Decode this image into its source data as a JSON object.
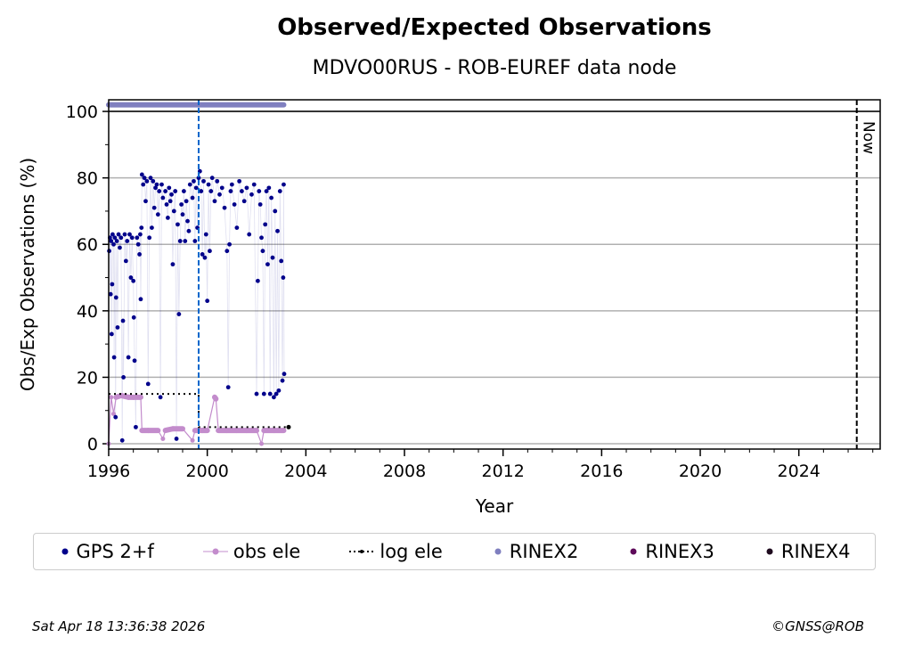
{
  "chart_data": {
    "type": "scatter",
    "title": "Observed/Expected Observations",
    "subtitle": "MDVO00RUS - ROB-EUREF data node",
    "xlabel": "Year",
    "ylabel": "Obs/Exp Observations (%)",
    "xlim": [
      1996,
      2027.3
    ],
    "ylim": [
      -1.6,
      103.5
    ],
    "xticks": [
      "1996",
      "2000",
      "2004",
      "2008",
      "2012",
      "2016",
      "2020",
      "2024"
    ],
    "yticks": [
      "0",
      "20",
      "40",
      "60",
      "80",
      "100"
    ],
    "grid": true,
    "now_label": "Now",
    "now_x": 2026.35,
    "marker_x": 1999.65,
    "legend": [
      "GPS 2+f",
      "obs ele",
      "log ele",
      "RINEX2",
      "RINEX3",
      "RINEX4"
    ],
    "legend_placement": "bottom",
    "colors": {
      "gps": "#00008b",
      "obs": "#c38ccc",
      "log": "#000000",
      "rinex2": "#7f7fbf",
      "rinex3": "#5e0a5a",
      "rinex4": "#1e0a1e",
      "marker": "#0066cc"
    },
    "series": [
      {
        "name": "GPS 2+f",
        "points": [
          [
            1996.02,
            58
          ],
          [
            1996.05,
            62
          ],
          [
            1996.08,
            45
          ],
          [
            1996.1,
            61
          ],
          [
            1996.12,
            33
          ],
          [
            1996.14,
            48
          ],
          [
            1996.16,
            63
          ],
          [
            1996.2,
            60
          ],
          [
            1996.22,
            26
          ],
          [
            1996.25,
            62
          ],
          [
            1996.28,
            8
          ],
          [
            1996.3,
            44
          ],
          [
            1996.33,
            61
          ],
          [
            1996.36,
            35
          ],
          [
            1996.4,
            63
          ],
          [
            1996.45,
            59
          ],
          [
            1996.5,
            62
          ],
          [
            1996.55,
            1
          ],
          [
            1996.58,
            37
          ],
          [
            1996.6,
            20
          ],
          [
            1996.65,
            63
          ],
          [
            1996.7,
            55
          ],
          [
            1996.75,
            61
          ],
          [
            1996.8,
            26
          ],
          [
            1996.85,
            63
          ],
          [
            1996.9,
            50
          ],
          [
            1996.95,
            62
          ],
          [
            1997.0,
            49
          ],
          [
            1997.02,
            38
          ],
          [
            1997.05,
            25
          ],
          [
            1997.1,
            5
          ],
          [
            1997.15,
            62
          ],
          [
            1997.2,
            60
          ],
          [
            1997.25,
            57
          ],
          [
            1997.28,
            63
          ],
          [
            1997.3,
            43.5
          ],
          [
            1997.33,
            65
          ],
          [
            1997.35,
            81
          ],
          [
            1997.4,
            78
          ],
          [
            1997.45,
            80
          ],
          [
            1997.5,
            73
          ],
          [
            1997.55,
            79
          ],
          [
            1997.6,
            18
          ],
          [
            1997.65,
            62
          ],
          [
            1997.7,
            80
          ],
          [
            1997.75,
            65
          ],
          [
            1997.8,
            79
          ],
          [
            1997.85,
            71
          ],
          [
            1997.9,
            77
          ],
          [
            1997.95,
            78
          ],
          [
            1998.0,
            69
          ],
          [
            1998.05,
            76
          ],
          [
            1998.1,
            14
          ],
          [
            1998.15,
            78
          ],
          [
            1998.2,
            74
          ],
          [
            1998.3,
            76
          ],
          [
            1998.35,
            72
          ],
          [
            1998.4,
            68
          ],
          [
            1998.45,
            77
          ],
          [
            1998.5,
            73
          ],
          [
            1998.55,
            75
          ],
          [
            1998.6,
            54
          ],
          [
            1998.65,
            70
          ],
          [
            1998.7,
            76
          ],
          [
            1998.75,
            1.5
          ],
          [
            1998.8,
            66
          ],
          [
            1998.85,
            39
          ],
          [
            1998.9,
            61
          ],
          [
            1998.95,
            72
          ],
          [
            1999.0,
            69
          ],
          [
            1999.05,
            76
          ],
          [
            1999.1,
            61
          ],
          [
            1999.15,
            73
          ],
          [
            1999.2,
            67
          ],
          [
            1999.25,
            64
          ],
          [
            1999.3,
            78
          ],
          [
            1999.4,
            74
          ],
          [
            1999.45,
            79
          ],
          [
            1999.5,
            61
          ],
          [
            1999.55,
            77
          ],
          [
            1999.6,
            65
          ],
          [
            1999.65,
            80
          ],
          [
            1999.7,
            82
          ],
          [
            1999.75,
            76
          ],
          [
            1999.8,
            57
          ],
          [
            1999.85,
            79
          ],
          [
            1999.9,
            56
          ],
          [
            1999.95,
            63
          ],
          [
            2000.0,
            43
          ],
          [
            2000.05,
            78
          ],
          [
            2000.1,
            58
          ],
          [
            2000.15,
            76
          ],
          [
            2000.2,
            80
          ],
          [
            2000.3,
            73
          ],
          [
            2000.4,
            79
          ],
          [
            2000.5,
            75
          ],
          [
            2000.6,
            77
          ],
          [
            2000.7,
            71
          ],
          [
            2000.8,
            58
          ],
          [
            2000.85,
            17
          ],
          [
            2000.9,
            60
          ],
          [
            2000.95,
            76
          ],
          [
            2001.0,
            78
          ],
          [
            2001.1,
            72
          ],
          [
            2001.2,
            65
          ],
          [
            2001.3,
            79
          ],
          [
            2001.4,
            76
          ],
          [
            2001.5,
            73
          ],
          [
            2001.6,
            77
          ],
          [
            2001.7,
            63
          ],
          [
            2001.8,
            75
          ],
          [
            2001.9,
            78
          ],
          [
            2002.0,
            15
          ],
          [
            2002.05,
            49
          ],
          [
            2002.1,
            76
          ],
          [
            2002.15,
            72
          ],
          [
            2002.2,
            62
          ],
          [
            2002.25,
            58
          ],
          [
            2002.3,
            15
          ],
          [
            2002.35,
            66
          ],
          [
            2002.4,
            76
          ],
          [
            2002.45,
            54
          ],
          [
            2002.5,
            77
          ],
          [
            2002.55,
            15
          ],
          [
            2002.6,
            74
          ],
          [
            2002.65,
            56
          ],
          [
            2002.7,
            14
          ],
          [
            2002.75,
            70
          ],
          [
            2002.8,
            15
          ],
          [
            2002.85,
            64
          ],
          [
            2002.9,
            16
          ],
          [
            2002.95,
            76
          ],
          [
            2003.0,
            55
          ],
          [
            2003.05,
            19
          ],
          [
            2003.08,
            50
          ],
          [
            2003.1,
            78
          ],
          [
            2003.12,
            21
          ]
        ]
      },
      {
        "name": "obs ele",
        "points": [
          [
            1996.0,
            0
          ],
          [
            1996.1,
            14
          ],
          [
            1996.2,
            9
          ],
          [
            1996.3,
            14
          ],
          [
            1996.5,
            14.5
          ],
          [
            1996.8,
            14
          ],
          [
            1997.0,
            14
          ],
          [
            1997.3,
            14
          ],
          [
            1997.35,
            4
          ],
          [
            1997.6,
            4
          ],
          [
            1998.0,
            4
          ],
          [
            1998.2,
            1.5
          ],
          [
            1998.3,
            4
          ],
          [
            1998.6,
            4.5
          ],
          [
            1999.0,
            4.5
          ],
          [
            1999.4,
            1
          ],
          [
            1999.5,
            4
          ],
          [
            1999.8,
            4
          ],
          [
            2000.0,
            4
          ],
          [
            2000.3,
            14
          ],
          [
            2000.35,
            13.5
          ],
          [
            2000.45,
            4
          ],
          [
            2000.8,
            4
          ],
          [
            2001.2,
            4
          ],
          [
            2001.6,
            4
          ],
          [
            2002.0,
            4
          ],
          [
            2002.2,
            0
          ],
          [
            2002.3,
            4
          ],
          [
            2002.7,
            4
          ],
          [
            2003.1,
            4
          ]
        ]
      },
      {
        "name": "log ele",
        "points": [
          [
            1996.0,
            15
          ],
          [
            1999.65,
            15
          ],
          [
            1999.65,
            5
          ],
          [
            2003.3,
            5
          ]
        ]
      },
      {
        "name": "RINEX2",
        "range": [
          1996.0,
          2003.1
        ],
        "y": 102
      },
      {
        "name": "RINEX3",
        "points": []
      },
      {
        "name": "RINEX4",
        "points": []
      }
    ]
  },
  "footer": {
    "timestamp": "Sat Apr 18 13:36:38 2026",
    "credit": "©GNSS@ROB"
  }
}
